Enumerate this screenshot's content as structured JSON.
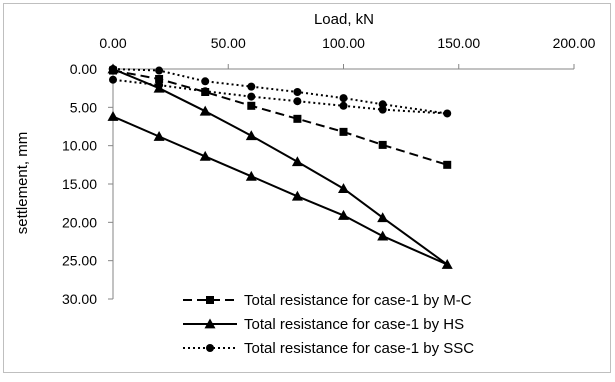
{
  "chart_data": {
    "type": "line",
    "title": "",
    "xlabel": "Load, kN",
    "ylabel": "settlement, mm",
    "x_axis_position": "top",
    "y_axis_inverted": true,
    "xlim": [
      0,
      200
    ],
    "ylim": [
      0,
      30
    ],
    "x_ticks": [
      "0.00",
      "50.00",
      "100.00",
      "150.00",
      "200.00"
    ],
    "x_tick_values": [
      0,
      50,
      100,
      150,
      200
    ],
    "y_ticks": [
      "0.00",
      "5.00",
      "10.00",
      "15.00",
      "20.00",
      "25.00",
      "30.00"
    ],
    "y_tick_values": [
      0,
      5,
      10,
      15,
      20,
      25,
      30
    ],
    "grid": false,
    "legend_position": "bottom-right",
    "series": [
      {
        "name": "Total resistance for case-1 by M-C",
        "line_style": "dashed",
        "marker": "square",
        "color": "#000000",
        "points": [
          [
            0,
            0.2
          ],
          [
            20,
            1.3
          ],
          [
            40,
            3.0
          ],
          [
            60,
            4.8
          ],
          [
            80,
            6.5
          ],
          [
            100,
            8.2
          ],
          [
            117,
            9.9
          ],
          [
            145,
            12.5
          ]
        ]
      },
      {
        "name": "Total resistance for case-1 by HS",
        "line_style": "solid",
        "marker": "triangle",
        "color": "#000000",
        "points": [
          [
            0,
            0
          ],
          [
            20,
            2.5
          ],
          [
            40,
            5.5
          ],
          [
            60,
            8.7
          ],
          [
            80,
            12.1
          ],
          [
            100,
            15.6
          ],
          [
            117,
            19.4
          ],
          [
            145,
            25.5
          ],
          [
            117,
            21.8
          ],
          [
            100,
            19.1
          ],
          [
            80,
            16.6
          ],
          [
            60,
            14.0
          ],
          [
            40,
            11.4
          ],
          [
            20,
            8.8
          ],
          [
            0,
            6.2
          ]
        ]
      },
      {
        "name": "Total resistance for case-1 by SSC",
        "line_style": "dotted",
        "marker": "circle",
        "color": "#000000",
        "points": [
          [
            0,
            0
          ],
          [
            20,
            0.2
          ],
          [
            40,
            1.6
          ],
          [
            60,
            2.3
          ],
          [
            80,
            3.0
          ],
          [
            100,
            3.8
          ],
          [
            117,
            4.6
          ],
          [
            145,
            5.8
          ],
          [
            117,
            5.3
          ],
          [
            100,
            4.8
          ],
          [
            80,
            4.2
          ],
          [
            60,
            3.6
          ],
          [
            40,
            2.9
          ],
          [
            20,
            2.1
          ],
          [
            0,
            1.4
          ]
        ]
      }
    ]
  }
}
